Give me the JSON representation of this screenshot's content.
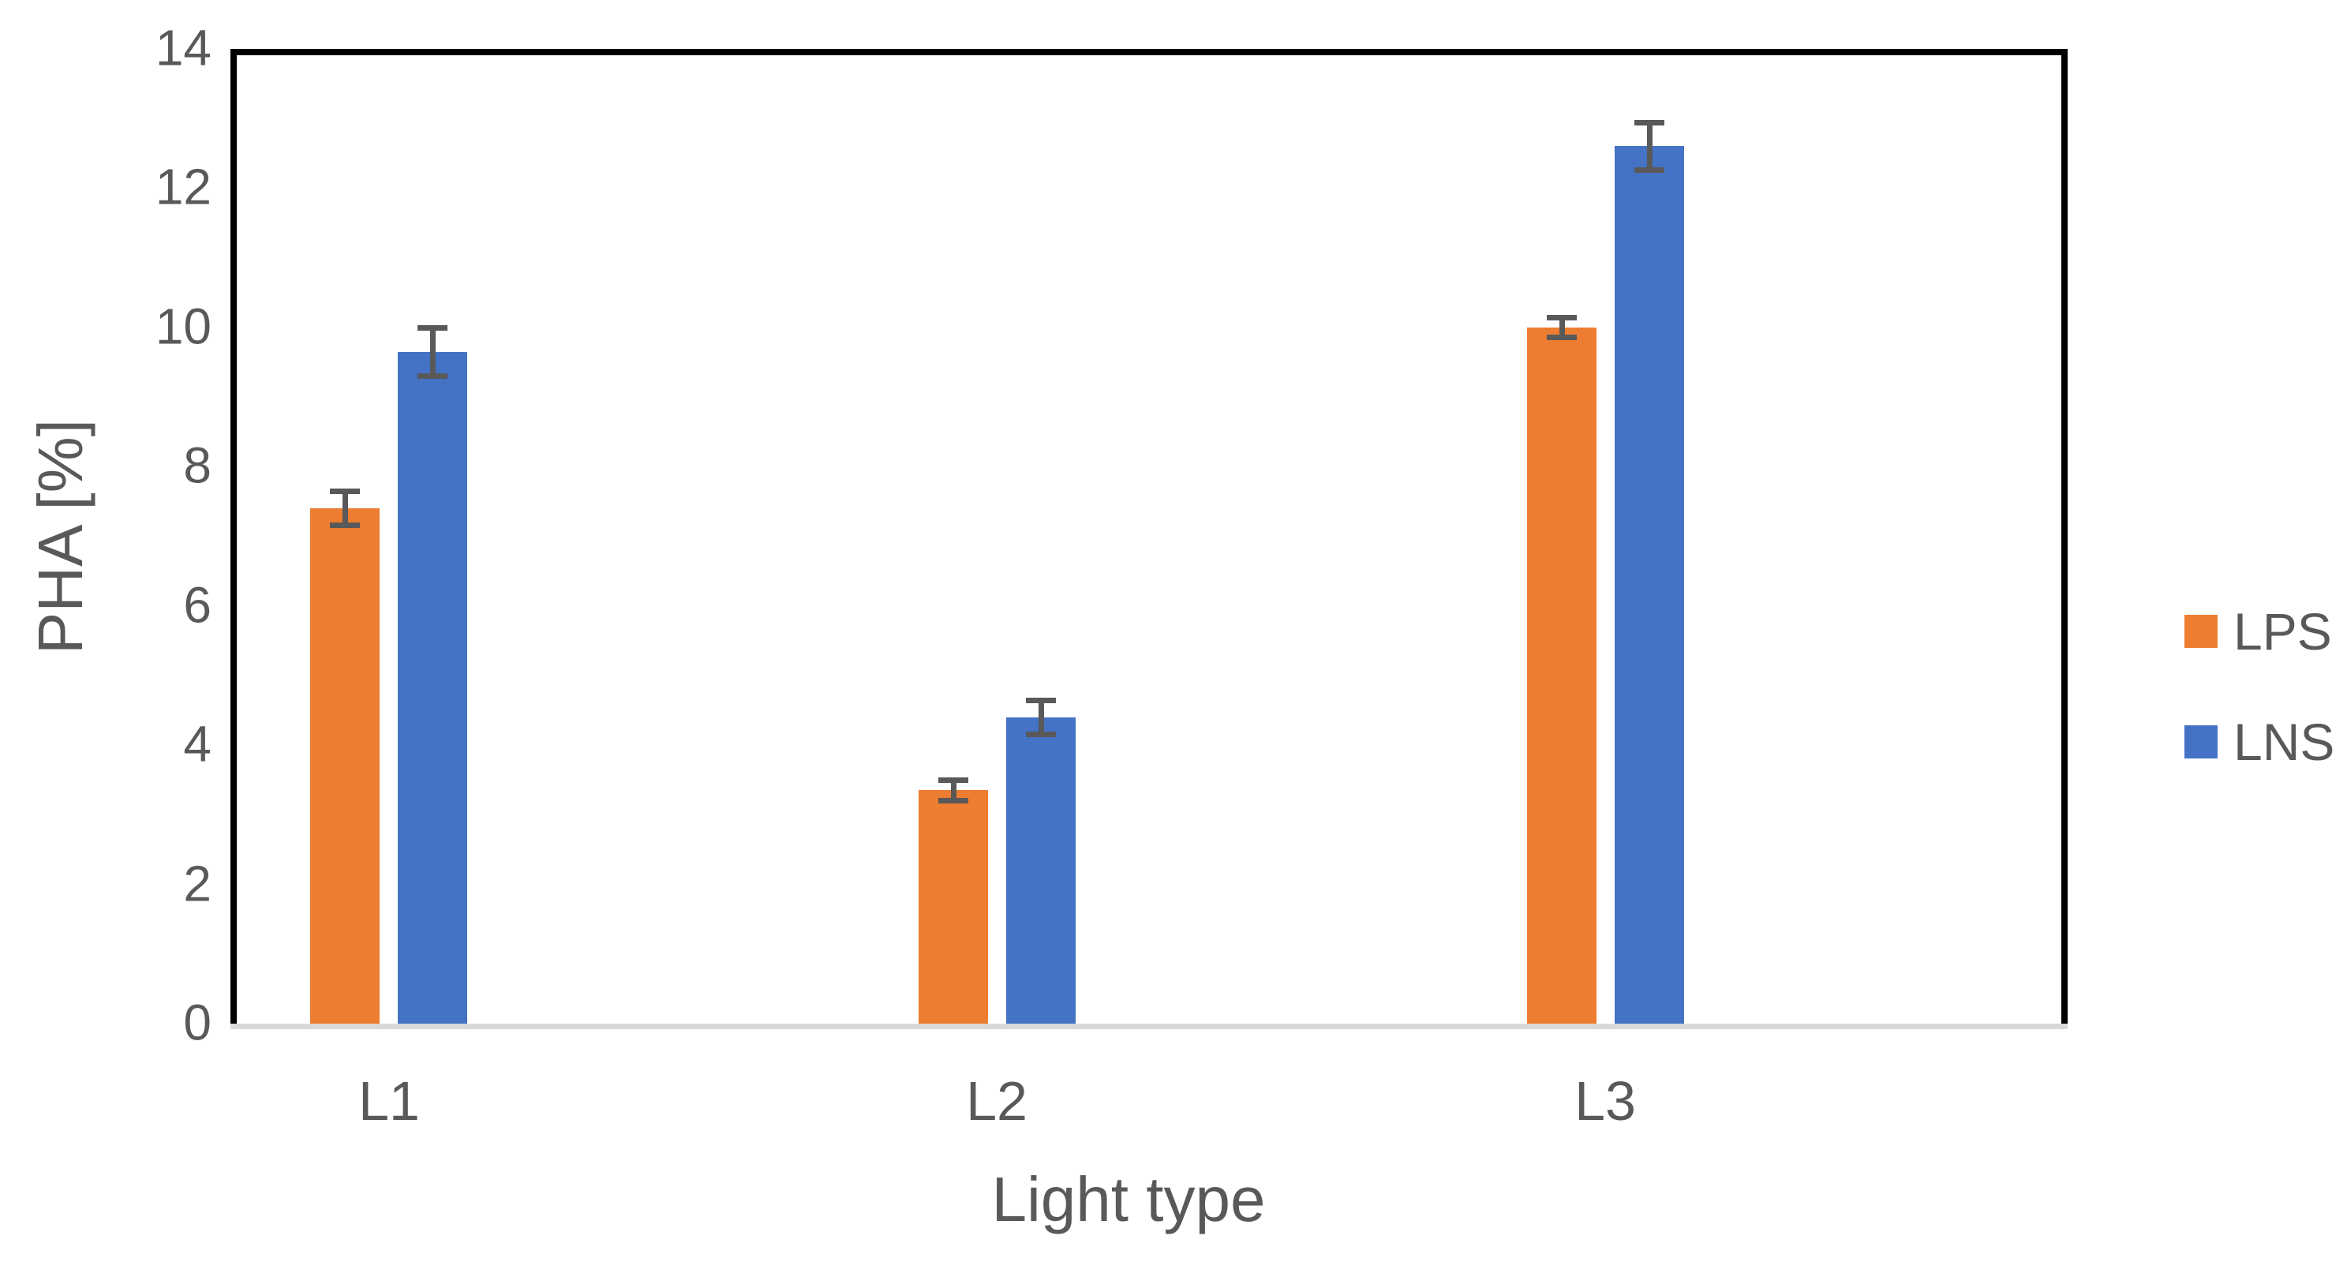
{
  "chart_data": {
    "type": "bar",
    "title": "",
    "categories": [
      "L1",
      "L2",
      "L3"
    ],
    "series": [
      {
        "name": "LPS",
        "color": "#ED7D31",
        "values": [
          7.4,
          3.35,
          10.0
        ],
        "error_bars": [
          0.25,
          0.15,
          0.15
        ]
      },
      {
        "name": "LNS",
        "color": "#4472C4",
        "values": [
          9.65,
          4.4,
          12.6
        ],
        "error_bars": [
          0.35,
          0.25,
          0.35
        ]
      }
    ],
    "xlabel": "Light type",
    "ylabel": "PHA [%]",
    "ylim": [
      0,
      14
    ],
    "yticks": [
      0,
      2,
      4,
      6,
      8,
      10,
      12,
      14
    ],
    "grid": false,
    "legend_position": "right-outside",
    "colors": {
      "axis_text": "#595959",
      "error_bar": "#595959",
      "plot_border": "#000000",
      "baseline": "#D9D9D9",
      "background": "#FFFFFF"
    }
  }
}
